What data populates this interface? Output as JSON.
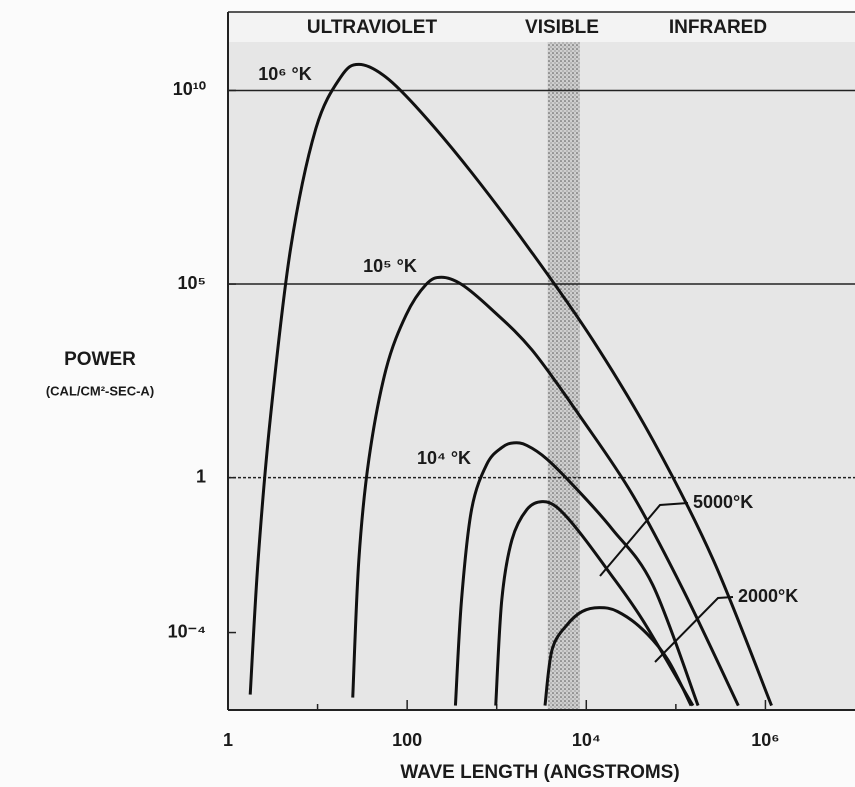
{
  "chart_data": {
    "type": "line",
    "region_labels": [
      "ULTRAVIOLET",
      "VISIBLE",
      "INFRARED"
    ],
    "visible_band": [
      3700,
      8500
    ],
    "y_label": "POWER",
    "y_label_units": "(CAL/CM²-SEC-A)",
    "x_label": "WAVE LENGTH (ANGSTROMS)",
    "xscale": "log",
    "yscale": "log",
    "xlim": [
      1,
      10000000
    ],
    "ylim": [
      1e-06,
      1000000000000.0
    ],
    "xticks": [
      1,
      100,
      {
        "value": 10000,
        "label": "10⁴"
      },
      {
        "value": 1000000,
        "label": "10⁶"
      }
    ],
    "xminor_ticks": [
      10,
      1000,
      100000
    ],
    "yticks": [
      {
        "value": 10000000000.0,
        "label": "10¹⁰"
      },
      {
        "value": 100000,
        "label": "10⁵"
      },
      1,
      {
        "value": 0.0001,
        "label": "10⁻⁴"
      }
    ],
    "ygrid": [
      10000000000.0,
      100000,
      1
    ],
    "series": [
      {
        "name": "10⁶ °K",
        "color": "#111111",
        "x": [
          1.77,
          2.17,
          2.96,
          4.98,
          9.5,
          18.1,
          28.9,
          58,
          144,
          524,
          2470,
          11700,
          55200,
          261000,
          1170000
        ],
        "values": [
          2.5e-06,
          0.0076,
          32,
          780000.0,
          980000000.0,
          22000000000.0,
          47000000000.0,
          22000000000.0,
          2700000000.0,
          76000000.0,
          650000.0,
          3700,
          9.5,
          0.0076,
          1.3e-06
        ]
      },
      {
        "name": "10⁵ °K",
        "color": "#111111",
        "x": [
          24.7,
          28.9,
          37.4,
          58,
          97.5,
          163,
          241,
          405,
          879,
          2470,
          9000,
          32900,
          120000,
          498000
        ],
        "values": [
          2.1e-06,
          0.0076,
          3.0,
          620,
          16000,
          98000,
          150000,
          98000,
          22000,
          2000,
          32,
          0.36,
          0.0013,
          1.3e-06
        ]
      },
      {
        "name": "10⁴ °K",
        "color": "#111111",
        "x": [
          346,
          405,
          524,
          773,
          1140,
          1550,
          2170,
          3650,
          7930,
          19600,
          55200,
          177000
        ],
        "values": [
          1.3e-06,
          0.00071,
          0.15,
          2.2,
          6.0,
          7.9,
          6.8,
          3.0,
          0.49,
          0.046,
          0.0017,
          1.3e-06
        ]
      },
      {
        "name": "5000°K",
        "color": "#111111",
        "x": [
          975,
          1140,
          1480,
          2170,
          3210,
          4720,
          7930,
          17200,
          42600,
          155000
        ],
        "values": [
          1.3e-06,
          0.00071,
          0.025,
          0.15,
          0.24,
          0.17,
          0.046,
          0.0042,
          0.00021,
          1.3e-06
        ]
      },
      {
        "name": "2000°K",
        "color": "#111111",
        "x": [
          3460,
          4150,
          6120,
          9000,
          14000,
          22300,
          42600,
          81300,
          148000
        ],
        "values": [
          1.3e-06,
          3.6e-05,
          0.00016,
          0.00035,
          0.00044,
          0.00035,
          0.00012,
          2e-05,
          1.3e-06
        ]
      }
    ]
  }
}
